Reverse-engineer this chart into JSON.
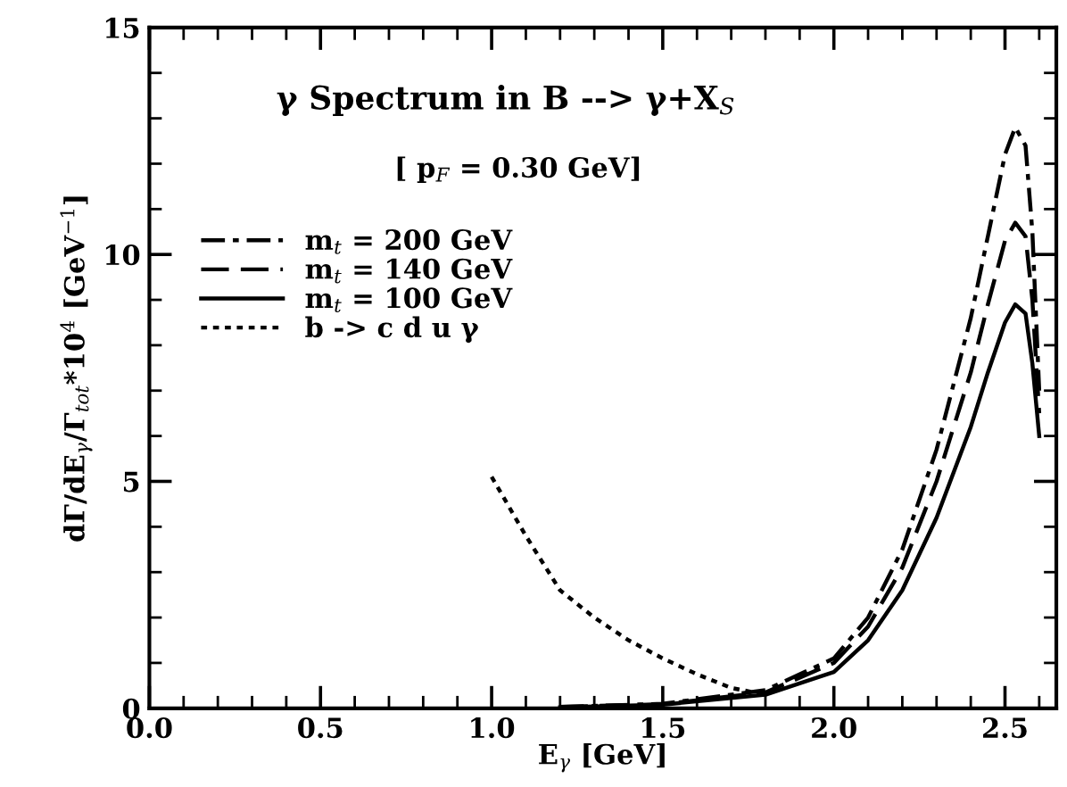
{
  "chart_data": {
    "type": "line",
    "title": "γ Spectrum in B --> γ+X$_{S}$",
    "subtitle": "[ p$_{F}$ = 0.30 GeV]",
    "xlabel": "E$_{γ}$ [GeV]",
    "ylabel": "dΓ/dE$_{γ}$/Γ$_{tot}$*10$^{4}$ [GeV$^{−1}$]",
    "xlim": [
      0,
      2.65
    ],
    "ylim": [
      0,
      15
    ],
    "xticks": [
      {
        "value": 0,
        "label": "0.0"
      },
      0.5,
      {
        "value": 1,
        "label": "1.0"
      },
      1.5,
      {
        "value": 2,
        "label": "2.0"
      },
      2.5
    ],
    "yticks": [
      0,
      5,
      10,
      15
    ],
    "grid": false,
    "legend": "top left",
    "series": [
      {
        "name": "m$_{t}$ = 200 GeV",
        "color": "#000000",
        "line_style": "dashdot",
        "x": [
          1.2,
          1.5,
          1.8,
          2.0,
          2.1,
          2.2,
          2.3,
          2.4,
          2.45,
          2.5,
          2.53,
          2.56,
          2.58,
          2.6
        ],
        "values": [
          0.03,
          0.1,
          0.4,
          1.1,
          2.0,
          3.5,
          5.7,
          8.6,
          10.4,
          12.2,
          12.8,
          12.4,
          10.5,
          7.0
        ]
      },
      {
        "name": "m$_{t}$ = 140 GeV",
        "color": "#000000",
        "line_style": "dashed",
        "x": [
          1.2,
          1.5,
          1.8,
          2.0,
          2.1,
          2.2,
          2.3,
          2.4,
          2.45,
          2.5,
          2.53,
          2.56,
          2.58,
          2.6
        ],
        "values": [
          0.03,
          0.09,
          0.35,
          1.0,
          1.8,
          3.1,
          5.0,
          7.4,
          8.9,
          10.3,
          10.7,
          10.4,
          9.0,
          6.5
        ]
      },
      {
        "name": "m$_{t}$ = 100 GeV",
        "color": "#000000",
        "line_style": "solid",
        "x": [
          1.2,
          1.5,
          1.8,
          2.0,
          2.1,
          2.2,
          2.3,
          2.4,
          2.45,
          2.5,
          2.53,
          2.56,
          2.58,
          2.6
        ],
        "values": [
          0.02,
          0.08,
          0.3,
          0.8,
          1.5,
          2.6,
          4.2,
          6.2,
          7.4,
          8.5,
          8.9,
          8.7,
          7.6,
          6.0
        ]
      },
      {
        "name": "b -> c d u γ",
        "color": "#000000",
        "line_style": "dotted",
        "x": [
          1.0,
          1.1,
          1.2,
          1.3,
          1.4,
          1.5,
          1.6,
          1.7,
          1.8
        ],
        "values": [
          5.1,
          3.8,
          2.6,
          2.0,
          1.5,
          1.1,
          0.75,
          0.45,
          0.3
        ]
      }
    ]
  }
}
